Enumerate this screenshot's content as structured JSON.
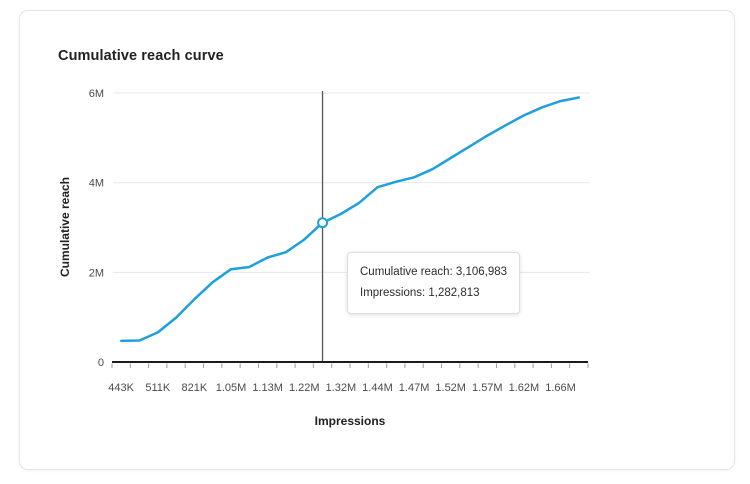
{
  "card": {
    "title": "Cumulative reach curve"
  },
  "tooltip": {
    "line1": "Cumulative reach: 3,106,983",
    "line2": "Impressions: 1,282,813"
  },
  "colors": {
    "line": "#1FA0DC",
    "grid": "#e8e8e8",
    "axis_line": "#1b1b1b",
    "tick_mark": "#9b9b9b",
    "tick_label": "#4b4b4b",
    "crosshair": "#555555",
    "marker_fill": "#ffffff",
    "title_text": "#222222"
  },
  "chart_data": {
    "type": "line",
    "title": "Cumulative reach curve",
    "xlabel": "Impressions",
    "ylabel": "Cumulative reach",
    "x_tick_labels": [
      "443K",
      "511K",
      "821K",
      "1.05M",
      "1.13M",
      "1.22M",
      "1.32M",
      "1.44M",
      "1.47M",
      "1.52M",
      "1.57M",
      "1.62M",
      "1.66M"
    ],
    "x_label_every_n_points": 2,
    "y_ticks": [
      {
        "label": "0",
        "value": 0
      },
      {
        "label": "2M",
        "value": 2000000
      },
      {
        "label": "4M",
        "value": 4000000
      },
      {
        "label": "6M",
        "value": 6000000
      }
    ],
    "ylim": [
      0,
      6000000
    ],
    "grid": "horizontal-only",
    "legend": "none",
    "series": [
      {
        "name": "Cumulative reach",
        "values": [
          470000,
          480000,
          660000,
          990000,
          1400000,
          1780000,
          2070000,
          2120000,
          2330000,
          2450000,
          2730000,
          3106983,
          3300000,
          3550000,
          3900000,
          4020000,
          4120000,
          4300000,
          4550000,
          4800000,
          5050000,
          5280000,
          5500000,
          5680000,
          5820000,
          5900000
        ]
      }
    ],
    "highlighted_point": {
      "index": 11,
      "impressions": 1282813,
      "cumulative_reach": 3106983
    }
  }
}
